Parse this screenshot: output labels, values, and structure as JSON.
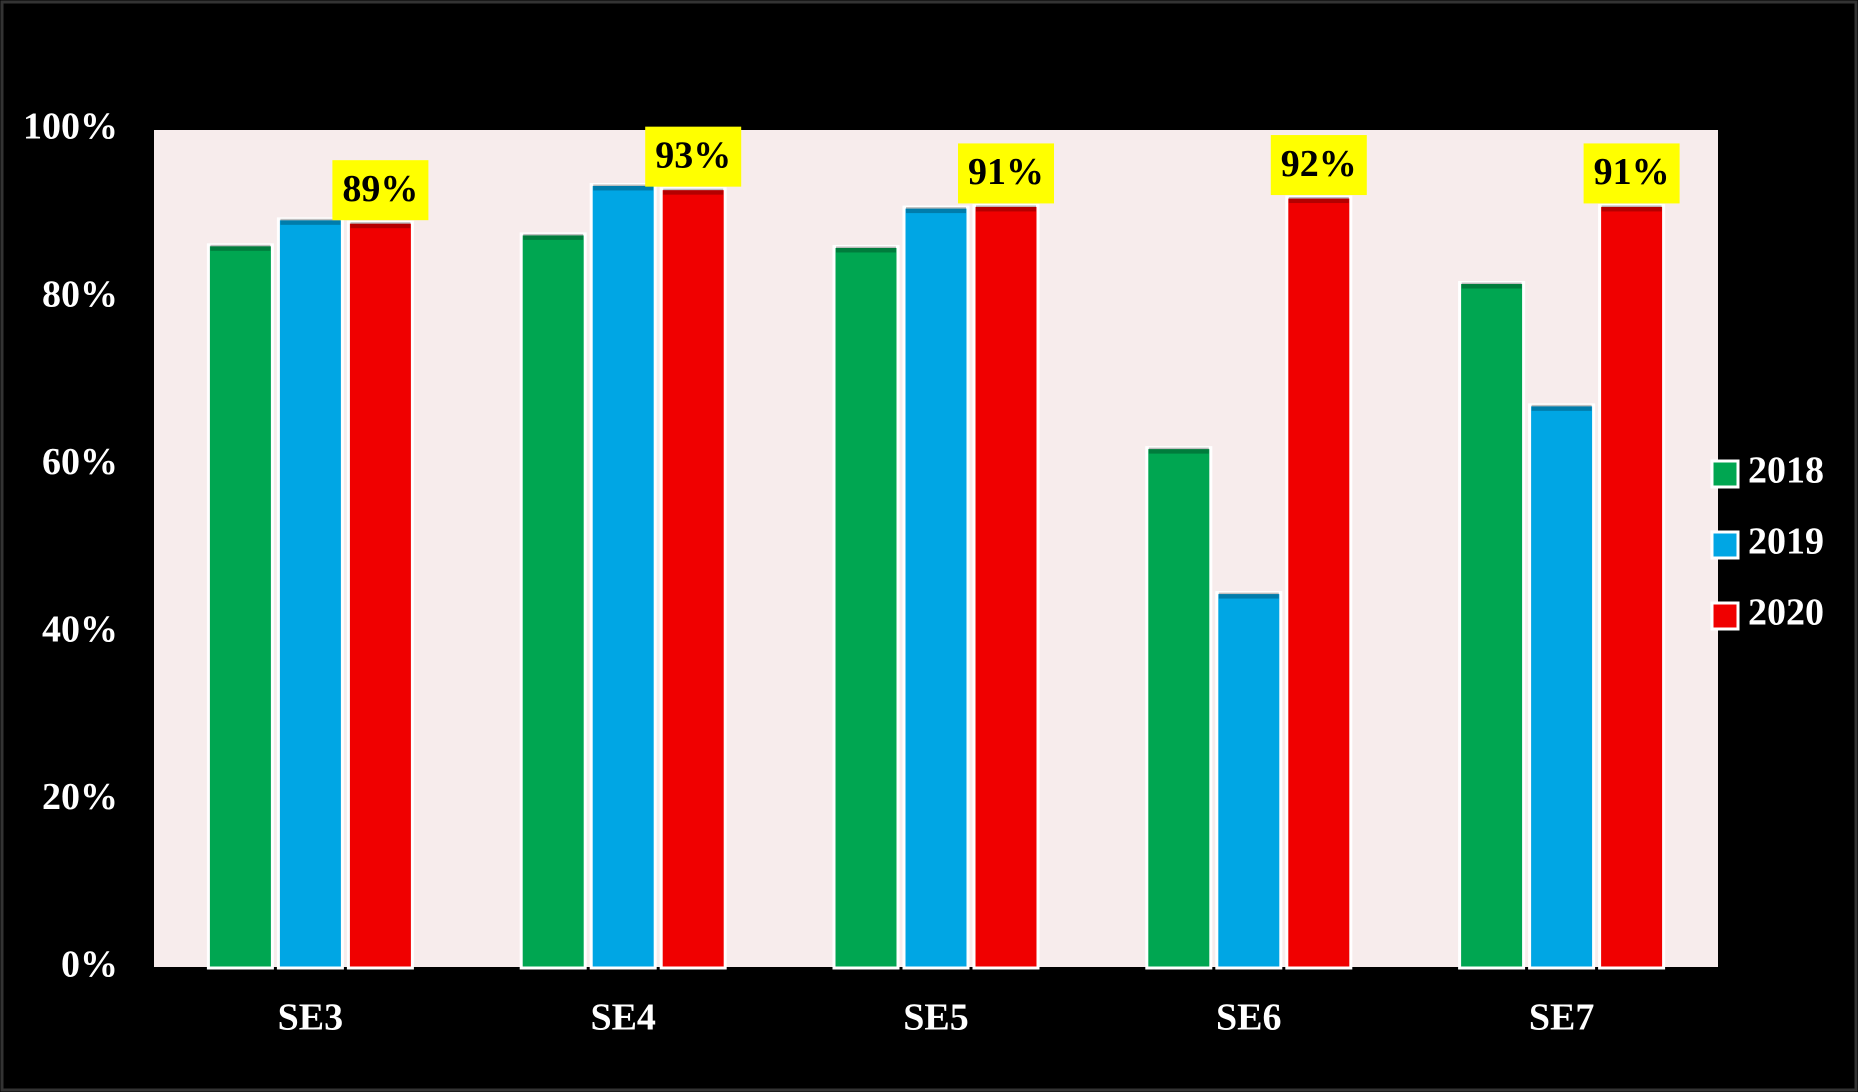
{
  "chart_data": {
    "type": "bar",
    "categories": [
      "SE3",
      "SE4",
      "SE5",
      "SE6",
      "SE7"
    ],
    "series": [
      {
        "name": "2018",
        "color": "#00a651",
        "values": [
          86.3,
          87.6,
          86.1,
          62.1,
          81.8
        ]
      },
      {
        "name": "2019",
        "color": "#00a6e4",
        "values": [
          89.4,
          93.5,
          90.8,
          44.8,
          67.2
        ]
      },
      {
        "name": "2020",
        "color": "#f00000",
        "values": [
          89,
          93,
          91,
          92,
          91
        ],
        "value_labels": [
          "89%",
          "93%",
          "91%",
          "92%",
          "91%"
        ]
      }
    ],
    "ylim": [
      0,
      100
    ],
    "yticks": [
      {
        "value": 0,
        "label": "0%"
      },
      {
        "value": 20,
        "label": "20%"
      },
      {
        "value": 40,
        "label": "40%"
      },
      {
        "value": 60,
        "label": "60%"
      },
      {
        "value": 80,
        "label": "80%"
      },
      {
        "value": 100,
        "label": "100%"
      }
    ],
    "grid": false,
    "legend": "right"
  }
}
